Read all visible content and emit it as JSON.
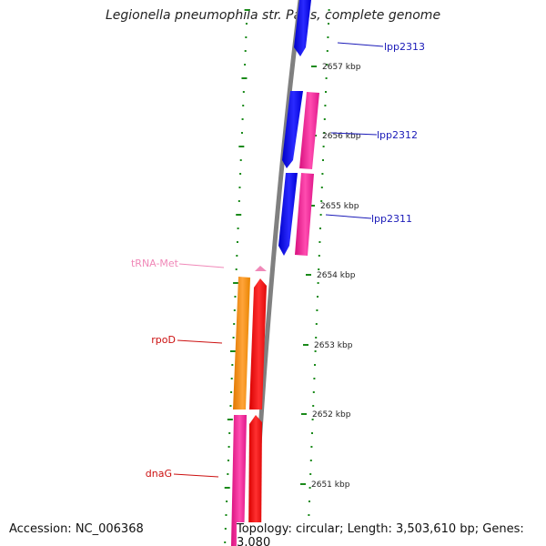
{
  "title": "Legionella pneumophila str. Paris, complete genome",
  "footer": {
    "accession": "Accession: NC_006368",
    "summary": "Topology: circular; Length: 3,503,610 bp; Genes: 3,080"
  },
  "colors": {
    "backbone": "#808080",
    "tick": "#1a8a1a",
    "kbp_label": "#222222",
    "gene_blue": "#1010f0",
    "gene_pink": "#f0209a",
    "gene_red": "#ee1010",
    "gene_orange": "#f08a10",
    "trna": "#f088b8",
    "label_blue": "#1a1ab8",
    "label_red": "#cc1010",
    "label_pink": "#f088b8"
  },
  "scale": {
    "unit": "kbp",
    "ticks": [
      {
        "label": "2657 kbp",
        "kbp": 2657
      },
      {
        "label": "2656 kbp",
        "kbp": 2656
      },
      {
        "label": "2655 kbp",
        "kbp": 2655
      },
      {
        "label": "2654 kbp",
        "kbp": 2654
      },
      {
        "label": "2653 kbp",
        "kbp": 2653
      },
      {
        "label": "2652 kbp",
        "kbp": 2652
      },
      {
        "label": "2651 kbp",
        "kbp": 2651
      }
    ]
  },
  "genes": [
    {
      "name": "lpp2313",
      "label": "lpp2313",
      "color": "blue",
      "strand": "minus"
    },
    {
      "name": "lpp2312",
      "label": "lpp2312",
      "color": "blue",
      "strand": "minus"
    },
    {
      "name": "lpp2311",
      "label": "lpp2311",
      "color": "blue",
      "strand": "minus"
    },
    {
      "name": "tRNA-Met",
      "label": "tRNA-Met",
      "color": "trna",
      "strand": "plus"
    },
    {
      "name": "rpoD",
      "label": "rpoD",
      "color": "red",
      "strand": "plus"
    },
    {
      "name": "dnaG",
      "label": "dnaG",
      "color": "red",
      "strand": "plus"
    }
  ]
}
